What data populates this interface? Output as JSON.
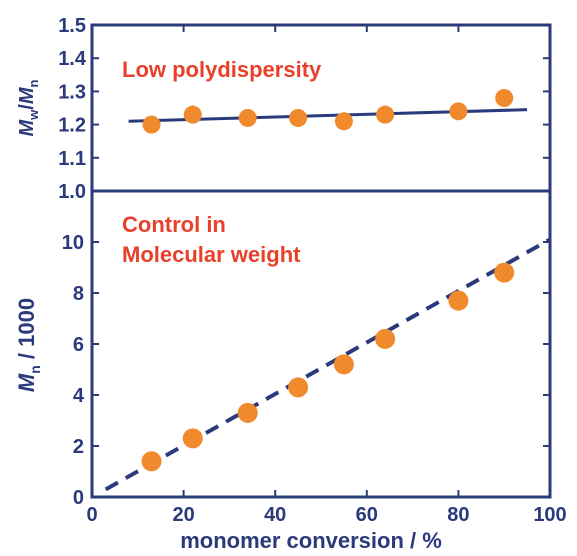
{
  "chart_data": [
    {
      "type": "scatter",
      "panel": "top",
      "ylabel": {
        "main1": "M",
        "sub1": "w",
        "sep": "/",
        "main2": "M",
        "sub2": "n"
      },
      "xlim": [
        0,
        100
      ],
      "ylim": [
        1.0,
        1.5
      ],
      "yticks": [
        1.0,
        1.1,
        1.2,
        1.3,
        1.4,
        1.5
      ],
      "ytick_labels": [
        "1.0",
        "1.1",
        "1.2",
        "1.3",
        "1.4",
        "1.5"
      ],
      "annotation": "Low polydispersity",
      "series": [
        {
          "x": [
            13,
            22,
            34,
            45,
            55,
            64,
            80,
            90
          ],
          "y": [
            1.2,
            1.23,
            1.22,
            1.22,
            1.21,
            1.23,
            1.24,
            1.28
          ]
        }
      ],
      "trendline": {
        "style": "solid",
        "x": [
          8,
          95
        ],
        "y": [
          1.21,
          1.245
        ]
      },
      "grid": false
    },
    {
      "type": "scatter",
      "panel": "bottom",
      "xlabel": "monomer conversion / %",
      "ylabel": {
        "main": "M",
        "sub": "n",
        "rest": " / 1000"
      },
      "xlim": [
        0,
        100
      ],
      "ylim": [
        0,
        12
      ],
      "xticks": [
        0,
        20,
        40,
        60,
        80,
        100
      ],
      "xtick_labels": [
        "0",
        "20",
        "40",
        "60",
        "80",
        "100"
      ],
      "yticks": [
        0,
        2,
        4,
        6,
        8,
        10
      ],
      "ytick_labels": [
        "0",
        "2",
        "4",
        "6",
        "8",
        "10"
      ],
      "annotation": [
        "Control in",
        "Molecular weight"
      ],
      "series": [
        {
          "x": [
            13,
            22,
            34,
            45,
            55,
            64,
            80,
            90
          ],
          "y": [
            1.4,
            2.3,
            3.3,
            4.3,
            5.2,
            6.2,
            7.7,
            8.8
          ]
        }
      ],
      "trendline": {
        "style": "dashed",
        "x": [
          3,
          100
        ],
        "y": [
          0.3,
          10.1
        ]
      },
      "grid": false
    }
  ],
  "colors": {
    "axis": "#2a3a7a",
    "marker": "#f08a2c",
    "line": "#2a3a7a",
    "annotation": "#e8402a"
  }
}
